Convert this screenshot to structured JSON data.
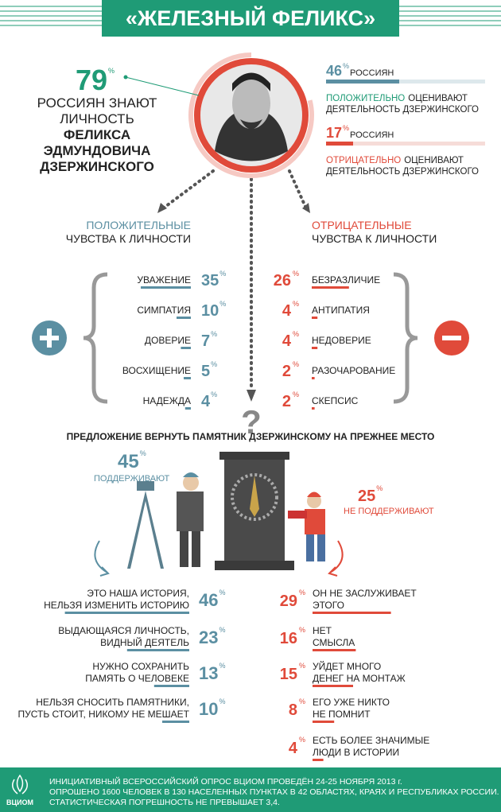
{
  "header": {
    "title": "«ЖЕЛЕЗНЫЙ ФЕЛИКС»"
  },
  "percent_sign": "%",
  "awareness": {
    "value": 79,
    "lines": [
      "РОССИЯН ЗНАЮТ",
      "ЛИЧНОСТЬ"
    ],
    "bold_lines": [
      "ФЕЛИКСА",
      "ЭДМУНДОВИЧА",
      "ДЗЕРЖИНСКОГО"
    ]
  },
  "ratings": [
    {
      "value": 46,
      "who": "РОССИЯН",
      "verdict": "ПОЛОЖИТЕЛЬНО",
      "verb": "ОЦЕНИВАЮТ",
      "object": "ДЕЯТЕЛЬНОСТЬ ДЗЕРЖИНСКОГО"
    },
    {
      "value": 17,
      "who": "РОССИЯН",
      "verdict": "ОТРИЦАТЕЛЬНО",
      "verb": "ОЦЕНИВАЮТ",
      "object": "ДЕЯТЕЛЬНОСТЬ ДЗЕРЖИНСКОГО"
    }
  ],
  "positive": {
    "title": "ПОЛОЖИТЕЛЬНЫЕ",
    "subtitle": "ЧУВСТВА К ЛИЧНОСТИ",
    "items": [
      {
        "label": "УВАЖЕНИЕ",
        "value": 35
      },
      {
        "label": "СИМПАТИЯ",
        "value": 10
      },
      {
        "label": "ДОВЕРИЕ",
        "value": 7
      },
      {
        "label": "ВОСХИЩЕНИЕ",
        "value": 5
      },
      {
        "label": "НАДЕЖДА",
        "value": 4
      }
    ]
  },
  "negative": {
    "title": "ОТРИЦАТЕЛЬНЫЕ",
    "subtitle": "ЧУВСТВА К ЛИЧНОСТИ",
    "items": [
      {
        "label": "БЕЗРАЗЛИЧИЕ",
        "value": 26
      },
      {
        "label": "АНТИПАТИЯ",
        "value": 4
      },
      {
        "label": "НЕДОВЕРИЕ",
        "value": 4
      },
      {
        "label": "РАЗОЧАРОВАНИЕ",
        "value": 2
      },
      {
        "label": "СКЕПСИС",
        "value": 2
      }
    ]
  },
  "monument": {
    "question": "?",
    "title": "ПРЕДЛОЖЕНИЕ ВЕРНУТЬ ПАМЯТНИК ДЗЕРЖИНСКОМУ НА ПРЕЖНЕЕ МЕСТО",
    "support": {
      "value": 45,
      "label": "ПОДДЕРЖИВАЮТ",
      "reasons": [
        {
          "lines": [
            "ЭТО НАША ИСТОРИЯ,",
            "НЕЛЬЗЯ ИЗМЕНИТЬ ИСТОРИЮ"
          ],
          "value": 46
        },
        {
          "lines": [
            "ВЫДАЮЩАЯСЯ ЛИЧНОСТЬ,",
            "ВИДНЫЙ ДЕЯТЕЛЬ"
          ],
          "value": 23
        },
        {
          "lines": [
            "НУЖНО СОХРАНИТЬ",
            "ПАМЯТЬ О ЧЕЛОВЕКЕ"
          ],
          "value": 13
        },
        {
          "lines": [
            "НЕЛЬЗЯ СНОСИТЬ ПАМЯТНИКИ,",
            "ПУСТЬ СТОИТ, НИКОМУ НЕ МЕШАЕТ"
          ],
          "value": 10
        }
      ]
    },
    "oppose": {
      "value": 25,
      "label": "НЕ ПОДДЕРЖИВАЮТ",
      "reasons": [
        {
          "lines": [
            "ОН НЕ ЗАСЛУЖИВАЕТ",
            "ЭТОГО"
          ],
          "value": 29
        },
        {
          "lines": [
            "НЕТ",
            "СМЫСЛА"
          ],
          "value": 16
        },
        {
          "lines": [
            "УЙДЕТ МНОГО",
            "ДЕНЕГ НА МОНТАЖ"
          ],
          "value": 15
        },
        {
          "lines": [
            "ЕГО УЖЕ НИКТО",
            "НЕ ПОМНИТ"
          ],
          "value": 8
        },
        {
          "lines": [
            "ЕСТЬ БОЛЕЕ ЗНАЧИМЫЕ",
            "ЛЮДИ В ИСТОРИИ"
          ],
          "value": 4
        }
      ]
    }
  },
  "footer": {
    "logo": "ВЦИОМ",
    "lines": [
      "ИНИЦИАТИВНЫЙ ВСЕРОССИЙСКИЙ ОПРОС ВЦИОМ ПРОВЕДЁН 24-25 НОЯБРЯ 2013 г.",
      "ОПРОШЕНО 1600 ЧЕЛОВЕК В 130 НАСЕЛЕННЫХ ПУНКТАХ В 42 ОБЛАСТЯХ, КРАЯХ И РЕСПУБЛИКАХ РОССИИ.",
      "СТАТИСТИЧЕСКАЯ ПОГРЕШНОСТЬ НЕ ПРЕВЫШАЕТ 3,4."
    ]
  }
}
